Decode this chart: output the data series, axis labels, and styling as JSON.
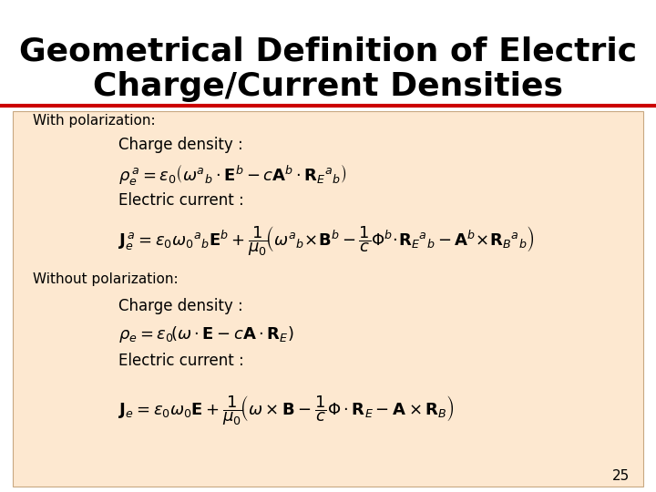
{
  "title_line1": "Geometrical Definition of Electric",
  "title_line2": "Charge/Current Densities",
  "title_fontsize": 26,
  "title_color": "#000000",
  "title_bg": "#ffffff",
  "content_bg": "#fde8d0",
  "slide_bg": "#ffffff",
  "rule_color": "#cc0000",
  "label_with": "With polarization:",
  "label_without": "Without polarization:",
  "label_fontsize": 11,
  "charge_density_label": "Charge density :",
  "electric_current_label": "Electric current :",
  "page_number": "25",
  "eq_fontsize": 13,
  "sublabel_fontsize": 12
}
